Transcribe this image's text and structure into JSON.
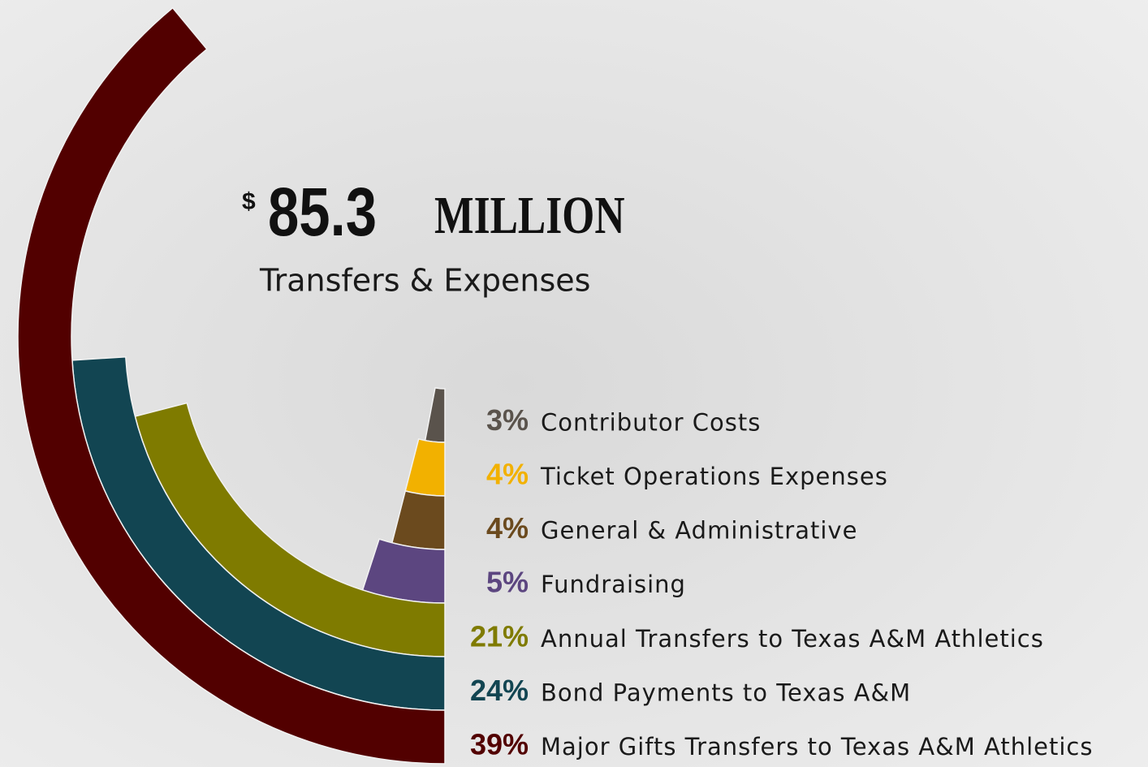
{
  "chart_data": {
    "type": "radial-bar",
    "title": {
      "currency": "$",
      "amount": "85.3",
      "unit": "MILLION"
    },
    "subtitle": "Transfers & Expenses",
    "categories": [
      "Contributor Costs",
      "Ticket Operations Expenses",
      "General & Administrative",
      "Fundraising",
      "Annual Transfers to Texas A&M Athletics",
      "Bond Payments to Texas A&M",
      "Major Gifts Transfers to Texas A&M Athletics"
    ],
    "values": [
      3,
      4,
      4,
      5,
      21,
      24,
      39
    ],
    "value_labels": [
      "3%",
      "4%",
      "4%",
      "5%",
      "21%",
      "24%",
      "39%"
    ],
    "colors": [
      "#5a534c",
      "#f2b100",
      "#6b4a1e",
      "#5c4680",
      "#7f7b00",
      "#124552",
      "#520000"
    ]
  }
}
